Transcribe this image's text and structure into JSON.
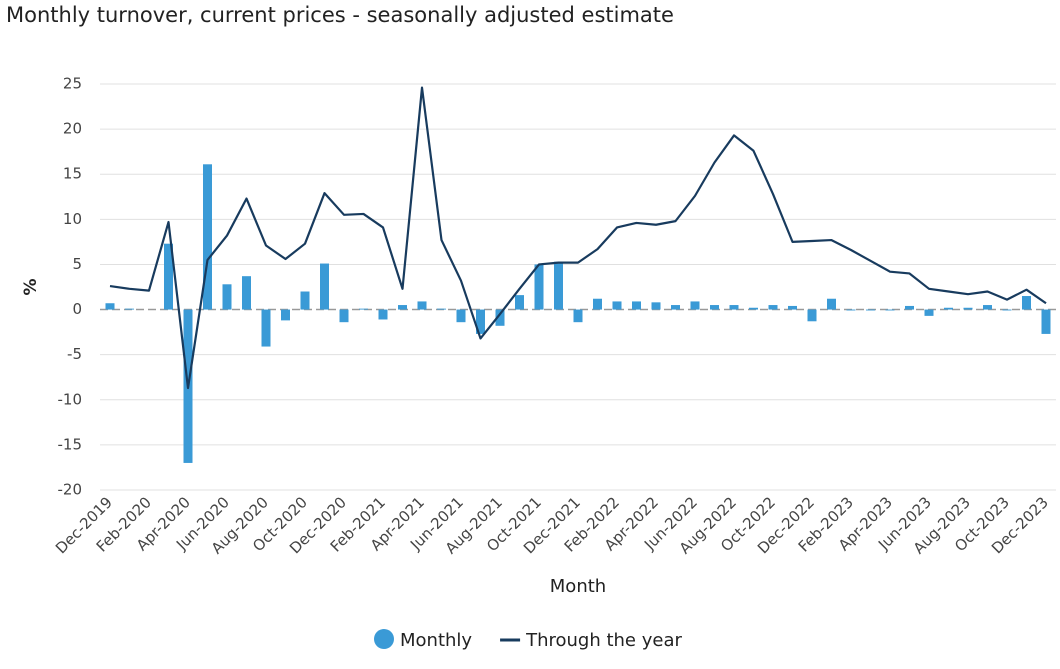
{
  "chart_data": {
    "type": "bar-line",
    "title": "Monthly turnover, current prices - seasonally adjusted estimate",
    "x_label": "Month",
    "y_label": "%",
    "categories": [
      "Dec-2019",
      null,
      "Feb-2020",
      null,
      "Apr-2020",
      null,
      "Jun-2020",
      null,
      "Aug-2020",
      null,
      "Oct-2020",
      null,
      "Dec-2020",
      null,
      "Feb-2021",
      null,
      "Apr-2021",
      null,
      "Jun-2021",
      null,
      "Aug-2021",
      null,
      "Oct-2021",
      null,
      "Dec-2021",
      null,
      "Feb-2022",
      null,
      "Apr-2022",
      null,
      "Jun-2022",
      null,
      "Aug-2022",
      null,
      "Oct-2022",
      null,
      "Dec-2022",
      null,
      "Feb-2023",
      null,
      "Apr-2023",
      null,
      "Jun-2023",
      null,
      "Aug-2023",
      null,
      "Oct-2023",
      null,
      "Dec-2023"
    ],
    "series": [
      {
        "name": "Monthly",
        "kind": "bar",
        "color": "#3a9ad6",
        "values": [
          0.7,
          0.1,
          0.0,
          7.3,
          -17.0,
          16.1,
          2.8,
          3.7,
          -4.1,
          -1.2,
          2.0,
          5.1,
          -1.4,
          0.1,
          -1.1,
          0.5,
          0.9,
          0.1,
          -1.4,
          -2.7,
          -1.8,
          1.6,
          5.0,
          5.3,
          -1.4,
          1.2,
          0.9,
          0.9,
          0.8,
          0.5,
          0.9,
          0.5,
          0.5,
          0.2,
          0.5,
          0.4,
          -1.3,
          1.2,
          -0.1,
          -0.1,
          -0.1,
          0.4,
          -0.7,
          0.2,
          0.2,
          0.5,
          -0.1,
          1.5,
          -2.7
        ]
      },
      {
        "name": "Through the year",
        "kind": "line",
        "color": "#183b5e",
        "values": [
          2.6,
          2.3,
          2.1,
          9.7,
          -8.7,
          5.5,
          8.2,
          12.3,
          7.1,
          5.6,
          7.3,
          12.9,
          10.5,
          10.6,
          9.1,
          2.3,
          24.6,
          7.7,
          3.2,
          -3.2,
          -0.5,
          2.3,
          5.0,
          5.2,
          5.2,
          6.7,
          9.1,
          9.6,
          9.4,
          9.8,
          12.6,
          16.3,
          19.3,
          17.6,
          12.8,
          7.5,
          7.6,
          7.7,
          6.6,
          5.4,
          4.2,
          4.0,
          2.3,
          2.0,
          1.7,
          2.0,
          1.1,
          2.2,
          0.7
        ]
      }
    ],
    "ylim": [
      -20,
      25
    ],
    "yticks": [
      -20,
      -15,
      -10,
      -5,
      0,
      5,
      10,
      15,
      20,
      25
    ],
    "grid": true
  }
}
